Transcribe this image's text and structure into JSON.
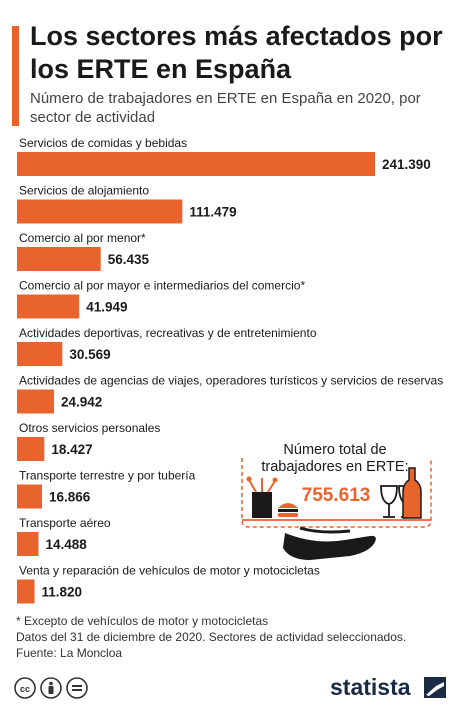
{
  "header": {
    "title": "Los sectores más afectados por los ERTE en España",
    "subtitle": "Número de trabajadores en ERTE en España en 2020, por sector de actividad"
  },
  "chart_data": {
    "type": "bar",
    "orientation": "horizontal",
    "categories": [
      "Servicios de comidas y bebidas",
      "Servicios de alojamiento",
      "Comercio al por menor*",
      "Comercio al por mayor e intermediarios del comercio*",
      "Actividades deportivas, recreativas y de entretenimiento",
      "Actividades de agencias de viajes, operadores turísticos y servicios de reservas",
      "Otros servicios personales",
      "Transporte terrestre y por tubería",
      "Transporte aéreo",
      "Venta y reparación de vehículos de motor y motocicletas"
    ],
    "values": [
      241390,
      111479,
      56435,
      41949,
      30569,
      24942,
      18427,
      16866,
      14488,
      11820
    ],
    "value_labels": [
      "241.390",
      "111.479",
      "56.435",
      "41.949",
      "30.569",
      "24.942",
      "18.427",
      "16.866",
      "14.488",
      "11.820"
    ],
    "bar_color": "#e8642c"
  },
  "total_box": {
    "label_line1": "Número total de",
    "label_line2": "trabajadores en ERTE:",
    "value": "755.613",
    "icon": "waiter-tray-with-food-and-wine-icon"
  },
  "footnote": {
    "line1": "* Excepto de vehículos de motor y motocicletas",
    "line2": "Datos del 31 de diciembre de 2020. Sectores de actividad seleccionados.",
    "line3": "Fuente: La Moncloa"
  },
  "license_icons": [
    "cc-icon",
    "by-person-icon",
    "nd-equals-icon"
  ],
  "brand": {
    "name": "statista",
    "color": "#1a2a44"
  }
}
